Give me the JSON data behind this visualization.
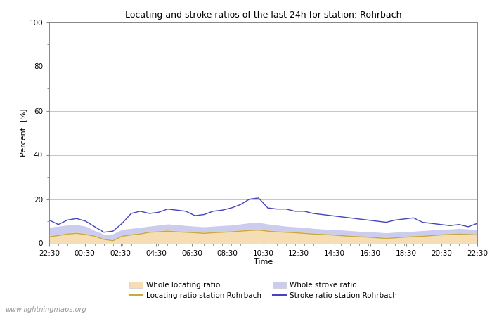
{
  "title": "Locating and stroke ratios of the last 24h for station: Rohrbach",
  "xlabel": "Time",
  "ylabel": "Percent  [%]",
  "ylim": [
    0,
    100
  ],
  "yticks": [
    0,
    20,
    40,
    60,
    80,
    100
  ],
  "xtick_labels": [
    "22:30",
    "00:30",
    "02:30",
    "04:30",
    "06:30",
    "08:30",
    "10:30",
    "12:30",
    "14:30",
    "16:30",
    "18:30",
    "20:30",
    "22:30"
  ],
  "watermark": "www.lightningmaps.org",
  "background_color": "#ffffff",
  "plot_bg_color": "#ffffff",
  "whole_locating_fill_color": "#f5deb3",
  "whole_stroke_fill_color": "#ccccee",
  "locating_line_color": "#c8a840",
  "stroke_line_color": "#4444bb",
  "whole_locating_ratio": [
    3.5,
    3.8,
    4.5,
    4.8,
    4.2,
    3.5,
    2.0,
    1.5,
    3.5,
    4.0,
    4.5,
    5.2,
    5.5,
    5.8,
    5.5,
    5.2,
    5.0,
    4.8,
    5.0,
    5.2,
    5.5,
    5.8,
    6.0,
    6.2,
    5.8,
    5.5,
    5.2,
    5.0,
    4.8,
    4.5,
    4.2,
    4.0,
    3.8,
    3.5,
    3.2,
    3.0,
    2.8,
    2.5,
    2.8,
    3.0,
    3.2,
    3.5,
    3.8,
    4.0,
    4.2,
    4.5,
    4.2,
    4.0
  ],
  "whole_stroke_ratio": [
    7.0,
    7.5,
    8.0,
    8.2,
    7.5,
    5.5,
    3.8,
    4.0,
    6.0,
    6.5,
    7.0,
    7.5,
    8.0,
    8.5,
    8.2,
    7.8,
    7.5,
    7.2,
    7.5,
    7.8,
    8.0,
    8.5,
    9.0,
    9.2,
    8.5,
    8.0,
    7.5,
    7.2,
    7.0,
    6.5,
    6.2,
    6.0,
    5.8,
    5.5,
    5.2,
    5.0,
    4.8,
    4.5,
    4.8,
    5.0,
    5.2,
    5.5,
    5.8,
    6.0,
    6.2,
    6.5,
    6.2,
    6.0
  ],
  "locating_ratio": [
    3.0,
    3.5,
    4.2,
    4.5,
    4.0,
    3.2,
    1.8,
    1.2,
    3.2,
    3.8,
    4.2,
    5.0,
    5.2,
    5.5,
    5.2,
    5.0,
    4.8,
    4.5,
    4.8,
    5.0,
    5.2,
    5.5,
    5.8,
    6.0,
    5.5,
    5.2,
    5.0,
    4.8,
    4.5,
    4.2,
    4.0,
    3.8,
    3.5,
    3.2,
    3.0,
    2.8,
    2.5,
    2.2,
    2.5,
    2.8,
    3.0,
    3.2,
    3.5,
    3.8,
    4.0,
    4.2,
    4.0,
    3.8
  ],
  "stroke_ratio": [
    10.5,
    8.5,
    10.5,
    11.2,
    10.0,
    7.5,
    5.0,
    5.5,
    9.0,
    13.5,
    14.5,
    13.5,
    14.0,
    15.5,
    15.0,
    14.5,
    12.5,
    13.0,
    14.5,
    15.0,
    16.0,
    17.5,
    20.0,
    20.5,
    16.0,
    15.5,
    15.5,
    14.5,
    14.5,
    13.5,
    13.0,
    12.5,
    12.0,
    11.5,
    11.0,
    10.5,
    10.0,
    9.5,
    10.5,
    11.0,
    11.5,
    9.5,
    9.0,
    8.5,
    8.0,
    8.5,
    7.5,
    9.0
  ]
}
